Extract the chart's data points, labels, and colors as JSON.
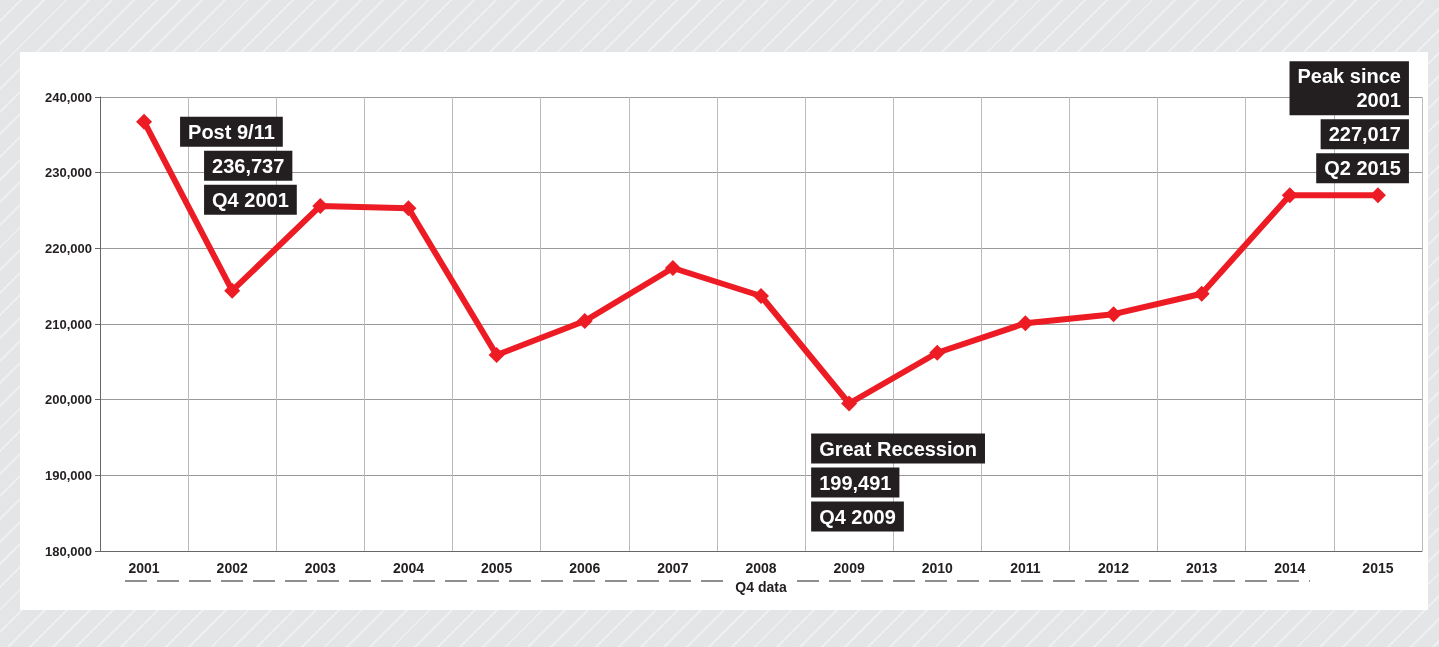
{
  "chart_data": {
    "type": "line",
    "xlabel": "Q4 data",
    "categories": [
      "2001",
      "2002",
      "2003",
      "2004",
      "2005",
      "2006",
      "2007",
      "2008",
      "2009",
      "2010",
      "2011",
      "2012",
      "2013",
      "2014",
      "2015"
    ],
    "values": [
      236737,
      214400,
      225600,
      225300,
      205900,
      210400,
      217400,
      213700,
      199491,
      206200,
      210100,
      211300,
      214000,
      227000,
      227017
    ],
    "color": "#ed1c24",
    "marker": "diamond",
    "line_style": "solid",
    "grid": true,
    "ylim": [
      180000,
      240000
    ],
    "yticks": [
      {
        "value": 180000,
        "label": "180,000"
      },
      {
        "value": 190000,
        "label": "190,000"
      },
      {
        "value": 200000,
        "label": "200,000"
      },
      {
        "value": 210000,
        "label": "210,000"
      },
      {
        "value": 220000,
        "label": "220,000"
      },
      {
        "value": 230000,
        "label": "230,000"
      },
      {
        "value": 240000,
        "label": "240,000"
      }
    ],
    "annotations": [
      {
        "text": "Post 9/11",
        "x": "2001",
        "y": 236737
      },
      "236,737",
      "Q4 2001",
      {
        "text": "Great Recession",
        "x": "2009",
        "y": 199491
      },
      "199,491",
      "Q4 2009",
      {
        "text": "Q2 2015",
        "x": "2015",
        "y": 227017
      },
      "227,017",
      "Peak since\n2001"
    ]
  }
}
